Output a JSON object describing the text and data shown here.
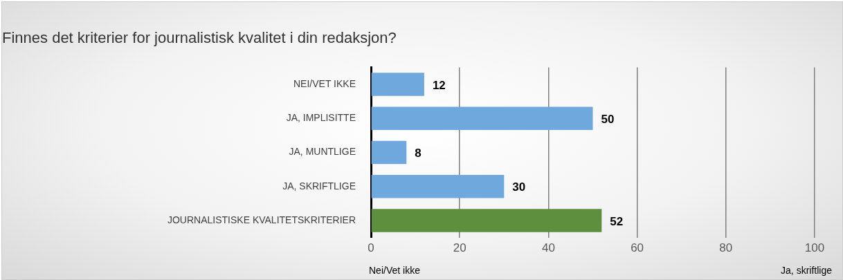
{
  "chart_data": {
    "type": "bar",
    "orientation": "horizontal",
    "title": "Finnes det kriterier for journalistisk kvalitet i din redaksjon?",
    "categories": [
      "NEI/VET IKKE",
      "JA, IMPLISITTE",
      "JA, MUNTLIGE",
      "JA, SKRIFTLIGE",
      "JOURNALISTISKE KVALITETSKRITERIER"
    ],
    "values": [
      12,
      50,
      8,
      30,
      52
    ],
    "colors": [
      "#6fa8dc",
      "#6fa8dc",
      "#6fa8dc",
      "#6fa8dc",
      "#5e8f3f"
    ],
    "xlim": [
      0,
      100
    ],
    "xticks": [
      0,
      20,
      40,
      60,
      80,
      100
    ],
    "grid": "x",
    "data_labels": true,
    "legend": false,
    "annotations": [
      "Nei/Vet ikke",
      "Ja, skriftlige"
    ]
  }
}
